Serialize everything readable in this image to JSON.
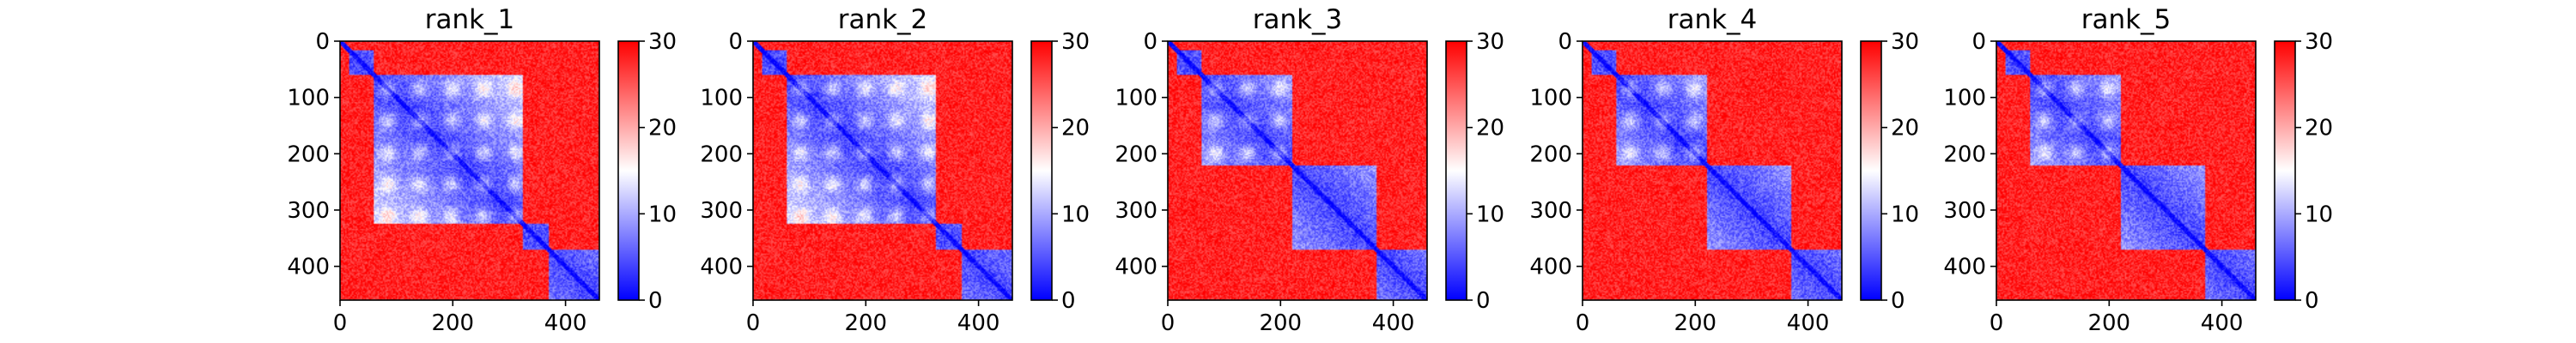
{
  "chart_data": [
    {
      "type": "heatmap",
      "title": "rank_1",
      "xlabel": "",
      "ylabel": "",
      "xlim": [
        0,
        460
      ],
      "ylim": [
        460,
        0
      ],
      "xticks": [
        0,
        200,
        400
      ],
      "yticks": [
        0,
        100,
        200,
        300,
        400
      ],
      "colorbar": {
        "min": 0,
        "max": 30,
        "ticks": [
          0,
          10,
          20,
          30
        ],
        "colormap": "bwr"
      },
      "matrix_size": 460,
      "domains": [
        [
          15,
          60
        ],
        [
          60,
          325
        ],
        [
          325,
          370
        ],
        [
          370,
          460
        ]
      ]
    },
    {
      "type": "heatmap",
      "title": "rank_2",
      "xlabel": "",
      "ylabel": "",
      "xlim": [
        0,
        460
      ],
      "ylim": [
        460,
        0
      ],
      "xticks": [
        0,
        200,
        400
      ],
      "yticks": [
        0,
        100,
        200,
        300,
        400
      ],
      "colorbar": {
        "min": 0,
        "max": 30,
        "ticks": [
          0,
          10,
          20,
          30
        ],
        "colormap": "bwr"
      },
      "matrix_size": 460,
      "domains": [
        [
          15,
          60
        ],
        [
          60,
          325
        ],
        [
          325,
          370
        ],
        [
          370,
          460
        ]
      ]
    },
    {
      "type": "heatmap",
      "title": "rank_3",
      "xlabel": "",
      "ylabel": "",
      "xlim": [
        0,
        460
      ],
      "ylim": [
        460,
        0
      ],
      "xticks": [
        0,
        200,
        400
      ],
      "yticks": [
        0,
        100,
        200,
        300,
        400
      ],
      "colorbar": {
        "min": 0,
        "max": 30,
        "ticks": [
          0,
          10,
          20,
          30
        ],
        "colormap": "bwr"
      },
      "matrix_size": 460,
      "domains": [
        [
          15,
          60
        ],
        [
          60,
          220
        ],
        [
          220,
          370
        ],
        [
          370,
          460
        ]
      ]
    },
    {
      "type": "heatmap",
      "title": "rank_4",
      "xlabel": "",
      "ylabel": "",
      "xlim": [
        0,
        460
      ],
      "ylim": [
        460,
        0
      ],
      "xticks": [
        0,
        200,
        400
      ],
      "yticks": [
        0,
        100,
        200,
        300,
        400
      ],
      "colorbar": {
        "min": 0,
        "max": 30,
        "ticks": [
          0,
          10,
          20,
          30
        ],
        "colormap": "bwr"
      },
      "matrix_size": 460,
      "domains": [
        [
          15,
          60
        ],
        [
          60,
          220
        ],
        [
          220,
          370
        ],
        [
          370,
          460
        ]
      ]
    },
    {
      "type": "heatmap",
      "title": "rank_5",
      "xlabel": "",
      "ylabel": "",
      "xlim": [
        0,
        460
      ],
      "ylim": [
        460,
        0
      ],
      "xticks": [
        0,
        200,
        400
      ],
      "yticks": [
        0,
        100,
        200,
        300,
        400
      ],
      "colorbar": {
        "min": 0,
        "max": 30,
        "ticks": [
          0,
          10,
          20,
          30
        ],
        "colormap": "bwr"
      },
      "matrix_size": 460,
      "domains": [
        [
          15,
          60
        ],
        [
          60,
          220
        ],
        [
          220,
          370
        ],
        [
          370,
          460
        ]
      ]
    }
  ],
  "colors": {
    "low": "#0000ff",
    "mid": "#ffffff",
    "high": "#ff0000"
  }
}
